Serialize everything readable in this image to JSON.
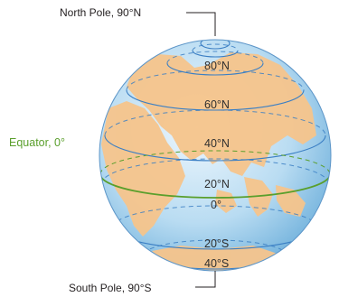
{
  "labels": {
    "north_pole": "North Pole, 90°N",
    "south_pole": "South Pole, 90°S",
    "equator": "Equator, 0°"
  },
  "latitude_labels": [
    "80°N",
    "60°N",
    "40°N",
    "20°N",
    "0°",
    "20°S",
    "40°S"
  ],
  "colors": {
    "ocean_light": "#e3f1fb",
    "ocean_dark": "#6aaed9",
    "land": "#f6c48c",
    "latitude_line": "#3b7fc4",
    "equator_line": "#5a9f2c",
    "equator_text": "#5a9f2c"
  }
}
